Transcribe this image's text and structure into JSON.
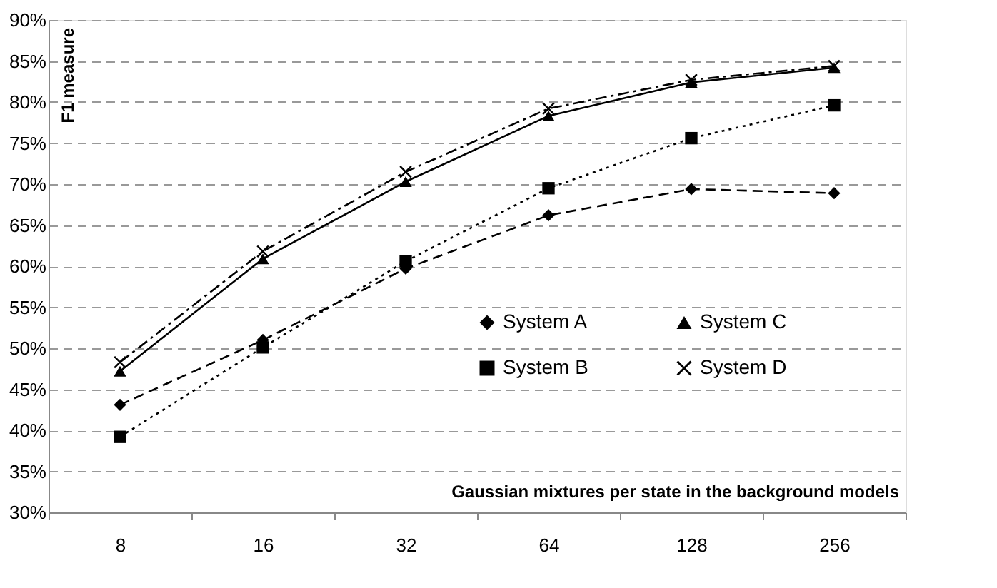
{
  "chart_data": {
    "type": "line",
    "ylabel": "F1 measure",
    "xlabel": "Gaussian mixtures per state in the background models",
    "categories": [
      "8",
      "16",
      "32",
      "64",
      "128",
      "256"
    ],
    "ylim": [
      30,
      90
    ],
    "yticks": [
      {
        "value": 30,
        "label": "30%"
      },
      {
        "value": 35,
        "label": "35%"
      },
      {
        "value": 40,
        "label": "40%"
      },
      {
        "value": 45,
        "label": "45%"
      },
      {
        "value": 50,
        "label": "50%"
      },
      {
        "value": 55,
        "label": "55%"
      },
      {
        "value": 60,
        "label": "60%"
      },
      {
        "value": 65,
        "label": "65%"
      },
      {
        "value": 70,
        "label": "70%"
      },
      {
        "value": 75,
        "label": "75%"
      },
      {
        "value": 80,
        "label": "80%"
      },
      {
        "value": 85,
        "label": "85%"
      },
      {
        "value": 90,
        "label": "90%"
      }
    ],
    "grid": "y",
    "legend": "bottom right",
    "series": [
      {
        "name": "System A",
        "color": "#000000",
        "marker": "diamond",
        "line_style": "dashed",
        "values": [
          43.1,
          51.0,
          59.7,
          66.2,
          69.4,
          68.9
        ]
      },
      {
        "name": "System B",
        "color": "#000000",
        "marker": "square",
        "line_style": "dotted",
        "values": [
          39.2,
          50.1,
          60.6,
          69.5,
          75.6,
          79.6
        ]
      },
      {
        "name": "System C",
        "color": "#000000",
        "marker": "triangle",
        "line_style": "solid",
        "values": [
          47.2,
          60.9,
          70.3,
          78.3,
          82.4,
          84.2
        ]
      },
      {
        "name": "System D",
        "color": "#000000",
        "marker": "cross",
        "line_style": "dashdot",
        "values": [
          48.3,
          61.8,
          71.5,
          79.2,
          82.7,
          84.4
        ]
      }
    ]
  }
}
